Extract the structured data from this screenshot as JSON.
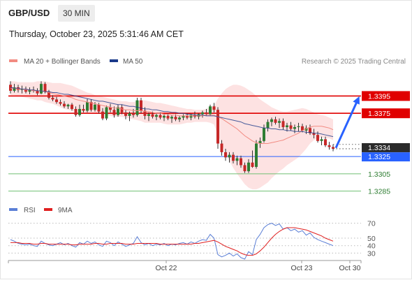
{
  "header": {
    "symbol": "GBP/USD",
    "timeframe": "30 MIN",
    "timestamp": "Thursday, October 23, 2025 5:31:46 AM CET"
  },
  "legend": {
    "ma20": {
      "label": "MA 20 + Bollinger Bands",
      "color": "#f28b82"
    },
    "ma50": {
      "label": "MA 50",
      "color": "#1a3a8a"
    },
    "credit": "Research © 2025 Trading Central"
  },
  "rsi_legend": {
    "rsi": {
      "label": "RSI",
      "color": "#5b7fd6"
    },
    "ma9": {
      "label": "9MA",
      "color": "#e02020"
    }
  },
  "colors": {
    "bull": "#2e7d32",
    "bear": "#c62828",
    "wick": "#333333",
    "band": "#fde2e2",
    "resistance": "#e00000",
    "support_line": "#2962ff",
    "target": "#6fbf73",
    "projection": "#2962ff"
  },
  "chart_data": [
    {
      "type": "candlestick",
      "title": "",
      "y_range": [
        1.3275,
        1.3418
      ],
      "x_ticks": [
        "Oct 22",
        "Oct 23",
        "Oct 30"
      ],
      "last_price": 1.3334,
      "levels": [
        {
          "value": 1.3395,
          "label": "1.3395",
          "kind": "resistance"
        },
        {
          "value": 1.3375,
          "label": "1.3375",
          "kind": "resistance"
        },
        {
          "value": 1.3325,
          "label": "1.3325",
          "kind": "pivot"
        },
        {
          "value": 1.3305,
          "label": "1.3305",
          "kind": "support"
        },
        {
          "value": 1.3285,
          "label": "1.3285",
          "kind": "support"
        }
      ],
      "projection": {
        "from": 1.3335,
        "to": 1.3395
      },
      "candles": [
        [
          1.3408,
          1.3412,
          1.3398,
          1.3401
        ],
        [
          1.3401,
          1.3409,
          1.3399,
          1.3405
        ],
        [
          1.3405,
          1.3408,
          1.3399,
          1.3402
        ],
        [
          1.3402,
          1.3407,
          1.3398,
          1.3403
        ],
        [
          1.3403,
          1.3406,
          1.3398,
          1.34
        ],
        [
          1.34,
          1.3405,
          1.3397,
          1.3402
        ],
        [
          1.3402,
          1.3406,
          1.3399,
          1.3401
        ],
        [
          1.3401,
          1.3404,
          1.3396,
          1.3398
        ],
        [
          1.3398,
          1.3412,
          1.3397,
          1.3409
        ],
        [
          1.3409,
          1.3411,
          1.3398,
          1.34
        ],
        [
          1.34,
          1.3402,
          1.3391,
          1.3393
        ],
        [
          1.3393,
          1.3396,
          1.3389,
          1.3391
        ],
        [
          1.3391,
          1.3394,
          1.3386,
          1.3388
        ],
        [
          1.3388,
          1.3391,
          1.3384,
          1.3386
        ],
        [
          1.3386,
          1.3389,
          1.3381,
          1.3383
        ],
        [
          1.3383,
          1.3386,
          1.338,
          1.3385
        ],
        [
          1.3385,
          1.3387,
          1.3378,
          1.338
        ],
        [
          1.338,
          1.3383,
          1.3371,
          1.3373
        ],
        [
          1.3373,
          1.3385,
          1.3371,
          1.338
        ],
        [
          1.338,
          1.3385,
          1.3376,
          1.3378
        ],
        [
          1.3378,
          1.3392,
          1.3376,
          1.3388
        ],
        [
          1.3388,
          1.3391,
          1.3377,
          1.3379
        ],
        [
          1.3379,
          1.3388,
          1.3377,
          1.3385
        ],
        [
          1.3385,
          1.3387,
          1.3375,
          1.3377
        ],
        [
          1.3377,
          1.3381,
          1.3367,
          1.3369
        ],
        [
          1.3369,
          1.3384,
          1.3367,
          1.3382
        ],
        [
          1.3382,
          1.3386,
          1.3376,
          1.3379
        ],
        [
          1.3379,
          1.3383,
          1.337,
          1.3373
        ],
        [
          1.3373,
          1.3385,
          1.3371,
          1.3382
        ],
        [
          1.3382,
          1.3385,
          1.3374,
          1.3376
        ],
        [
          1.3376,
          1.3379,
          1.3368,
          1.3372
        ],
        [
          1.3372,
          1.3377,
          1.3366,
          1.3375
        ],
        [
          1.3375,
          1.338,
          1.337,
          1.3373
        ],
        [
          1.3373,
          1.3393,
          1.3371,
          1.339
        ],
        [
          1.339,
          1.3393,
          1.3375,
          1.3378
        ],
        [
          1.3378,
          1.3382,
          1.3368,
          1.3372
        ],
        [
          1.3372,
          1.3376,
          1.3366,
          1.3374
        ],
        [
          1.3374,
          1.3377,
          1.3369,
          1.3371
        ],
        [
          1.3371,
          1.3375,
          1.3367,
          1.3373
        ],
        [
          1.3373,
          1.3376,
          1.3368,
          1.337
        ],
        [
          1.337,
          1.3374,
          1.3366,
          1.3372
        ],
        [
          1.3372,
          1.3375,
          1.3367,
          1.3369
        ],
        [
          1.3369,
          1.3373,
          1.3364,
          1.3371
        ],
        [
          1.3371,
          1.3374,
          1.3366,
          1.3368
        ],
        [
          1.3368,
          1.3372,
          1.3365,
          1.337
        ],
        [
          1.337,
          1.3374,
          1.3367,
          1.3372
        ],
        [
          1.3372,
          1.3375,
          1.3368,
          1.337
        ],
        [
          1.337,
          1.3374,
          1.3367,
          1.3373
        ],
        [
          1.3373,
          1.3377,
          1.3369,
          1.3371
        ],
        [
          1.3371,
          1.3375,
          1.3368,
          1.3374
        ],
        [
          1.3374,
          1.3378,
          1.337,
          1.3376
        ],
        [
          1.3376,
          1.338,
          1.3372,
          1.3374
        ],
        [
          1.3374,
          1.3385,
          1.3372,
          1.3383
        ],
        [
          1.3383,
          1.3387,
          1.3376,
          1.3379
        ],
        [
          1.3379,
          1.3382,
          1.3334,
          1.334
        ],
        [
          1.334,
          1.3344,
          1.3326,
          1.333
        ],
        [
          1.333,
          1.3334,
          1.332,
          1.3324
        ],
        [
          1.3324,
          1.333,
          1.3318,
          1.3327
        ],
        [
          1.3327,
          1.333,
          1.3317,
          1.332
        ],
        [
          1.332,
          1.3326,
          1.3315,
          1.3323
        ],
        [
          1.3323,
          1.3326,
          1.3312,
          1.3315
        ],
        [
          1.3315,
          1.3318,
          1.3306,
          1.3308
        ],
        [
          1.3308,
          1.3322,
          1.3306,
          1.3318
        ],
        [
          1.3318,
          1.3332,
          1.3312,
          1.3313
        ],
        [
          1.3313,
          1.3344,
          1.3311,
          1.334
        ],
        [
          1.334,
          1.3347,
          1.3335,
          1.3343
        ],
        [
          1.3343,
          1.3362,
          1.3341,
          1.3358
        ],
        [
          1.3358,
          1.3368,
          1.3354,
          1.3365
        ],
        [
          1.3365,
          1.337,
          1.336,
          1.3368
        ],
        [
          1.3368,
          1.3371,
          1.3362,
          1.3364
        ],
        [
          1.3364,
          1.3369,
          1.3358,
          1.3366
        ],
        [
          1.3366,
          1.3369,
          1.3356,
          1.3359
        ],
        [
          1.3359,
          1.3364,
          1.3354,
          1.3361
        ],
        [
          1.3361,
          1.3365,
          1.3355,
          1.3357
        ],
        [
          1.3357,
          1.3362,
          1.3352,
          1.3359
        ],
        [
          1.3359,
          1.3364,
          1.3354,
          1.336
        ],
        [
          1.336,
          1.3363,
          1.3353,
          1.3355
        ],
        [
          1.3355,
          1.3361,
          1.3351,
          1.3358
        ],
        [
          1.3358,
          1.3362,
          1.335,
          1.3352
        ],
        [
          1.3352,
          1.3357,
          1.3346,
          1.335
        ],
        [
          1.335,
          1.3354,
          1.3341,
          1.3343
        ],
        [
          1.3343,
          1.3348,
          1.3338,
          1.3345
        ],
        [
          1.3345,
          1.3348,
          1.3336,
          1.3338
        ],
        [
          1.3338,
          1.3342,
          1.3333,
          1.3336
        ],
        [
          1.3336,
          1.3339,
          1.3331,
          1.3334
        ]
      ],
      "ma20": [
        1.3404,
        1.3404,
        1.3403,
        1.3403,
        1.3402,
        1.3402,
        1.3401,
        1.3401,
        1.3401,
        1.34,
        1.3399,
        1.3398,
        1.3397,
        1.3396,
        1.3395,
        1.3394,
        1.3393,
        1.3391,
        1.339,
        1.3389,
        1.3388,
        1.3387,
        1.3386,
        1.3385,
        1.3384,
        1.3383,
        1.3382,
        1.3381,
        1.3381,
        1.338,
        1.3379,
        1.3379,
        1.3378,
        1.3378,
        1.3378,
        1.3377,
        1.3377,
        1.3376,
        1.3375,
        1.3375,
        1.3374,
        1.3374,
        1.3373,
        1.3373,
        1.3372,
        1.3372,
        1.3372,
        1.3372,
        1.3372,
        1.3372,
        1.3372,
        1.3373,
        1.3373,
        1.3373,
        1.3371,
        1.3369,
        1.3366,
        1.3363,
        1.336,
        1.3357,
        1.3353,
        1.3349,
        1.3346,
        1.3343,
        1.3341,
        1.334,
        1.334,
        1.334,
        1.3341,
        1.3342,
        1.3343,
        1.3344,
        1.3346,
        1.3348,
        1.335,
        1.3352,
        1.3355,
        1.3357,
        1.3359,
        1.336,
        1.336,
        1.336,
        1.3359,
        1.3358,
        1.3356
      ],
      "bb_upper": [
        1.3412,
        1.3412,
        1.3411,
        1.3411,
        1.3411,
        1.3411,
        1.3411,
        1.3412,
        1.3412,
        1.3412,
        1.3411,
        1.341,
        1.341,
        1.341,
        1.3409,
        1.3408,
        1.3407,
        1.3405,
        1.3403,
        1.3401,
        1.3399,
        1.3398,
        1.3396,
        1.3395,
        1.3394,
        1.3393,
        1.3392,
        1.3391,
        1.339,
        1.3389,
        1.3389,
        1.3388,
        1.3388,
        1.3389,
        1.339,
        1.339,
        1.3389,
        1.3388,
        1.3387,
        1.3387,
        1.3386,
        1.3385,
        1.3384,
        1.3383,
        1.3382,
        1.3381,
        1.338,
        1.338,
        1.3379,
        1.3379,
        1.3379,
        1.338,
        1.3382,
        1.3384,
        1.3392,
        1.3398,
        1.3403,
        1.3406,
        1.3408,
        1.3408,
        1.3407,
        1.3405,
        1.3402,
        1.3399,
        1.3395,
        1.3391,
        1.3388,
        1.3385,
        1.3382,
        1.338,
        1.3378,
        1.3377,
        1.3377,
        1.3378,
        1.3379,
        1.338,
        1.3381,
        1.338,
        1.3378,
        1.3376,
        1.3374,
        1.3373,
        1.3372,
        1.337,
        1.3368
      ],
      "bb_lower": [
        1.3396,
        1.3396,
        1.3395,
        1.3394,
        1.3393,
        1.3392,
        1.3391,
        1.339,
        1.339,
        1.3388,
        1.3387,
        1.3386,
        1.3384,
        1.3382,
        1.338,
        1.3379,
        1.3378,
        1.3377,
        1.3376,
        1.3376,
        1.3376,
        1.3376,
        1.3376,
        1.3375,
        1.3374,
        1.3373,
        1.3372,
        1.3371,
        1.3371,
        1.3371,
        1.337,
        1.3369,
        1.3368,
        1.3367,
        1.3366,
        1.3364,
        1.3364,
        1.3364,
        1.3364,
        1.3364,
        1.3363,
        1.3362,
        1.3362,
        1.3362,
        1.3362,
        1.3363,
        1.3364,
        1.3364,
        1.3365,
        1.3365,
        1.3365,
        1.3365,
        1.3364,
        1.3362,
        1.335,
        1.334,
        1.3329,
        1.332,
        1.3312,
        1.3305,
        1.3299,
        1.3293,
        1.3289,
        1.3287,
        1.3287,
        1.3289,
        1.3292,
        1.3295,
        1.33,
        1.3304,
        1.3308,
        1.3311,
        1.3315,
        1.3318,
        1.3321,
        1.3324,
        1.3329,
        1.3334,
        1.334,
        1.3344,
        1.3346,
        1.3347,
        1.3346,
        1.3346,
        1.3344
      ],
      "ma50": [
        1.3405,
        1.3404,
        1.3404,
        1.3403,
        1.3403,
        1.3402,
        1.3402,
        1.3401,
        1.3401,
        1.34,
        1.34,
        1.3399,
        1.3399,
        1.3398,
        1.3397,
        1.3397,
        1.3396,
        1.3395,
        1.3394,
        1.3393,
        1.3392,
        1.3391,
        1.339,
        1.3389,
        1.3389,
        1.3388,
        1.3387,
        1.3386,
        1.3385,
        1.3385,
        1.3384,
        1.3383,
        1.3383,
        1.3382,
        1.3381,
        1.338,
        1.338,
        1.3379,
        1.3379,
        1.3378,
        1.3377,
        1.3377,
        1.3376,
        1.3376,
        1.3375,
        1.3375,
        1.3374,
        1.3374,
        1.3373,
        1.3373,
        1.3373,
        1.3372,
        1.3372,
        1.3372,
        1.3371,
        1.337,
        1.3369,
        1.3368,
        1.3367,
        1.3366,
        1.3365,
        1.3363,
        1.3362,
        1.3361,
        1.336,
        1.3359,
        1.3358,
        1.3358,
        1.3357,
        1.3357,
        1.3356,
        1.3356,
        1.3355,
        1.3355,
        1.3354,
        1.3354,
        1.3354,
        1.3353,
        1.3353,
        1.3352,
        1.3352,
        1.3351,
        1.335,
        1.3349,
        1.3348
      ]
    },
    {
      "type": "line",
      "title": "",
      "y_range": [
        22,
        78
      ],
      "y_ticks": [
        70,
        50,
        40,
        30
      ],
      "series": [
        {
          "name": "RSI",
          "values": [
            48,
            46,
            43,
            42,
            41,
            42,
            40,
            39,
            46,
            43,
            41,
            40,
            42,
            44,
            41,
            43,
            40,
            38,
            44,
            42,
            46,
            43,
            45,
            41,
            39,
            46,
            44,
            40,
            45,
            42,
            39,
            41,
            43,
            52,
            44,
            41,
            43,
            40,
            42,
            41,
            43,
            40,
            42,
            41,
            43,
            44,
            42,
            45,
            43,
            46,
            48,
            47,
            55,
            50,
            28,
            25,
            27,
            30,
            26,
            29,
            24,
            22,
            32,
            28,
            48,
            55,
            64,
            68,
            70,
            67,
            69,
            62,
            64,
            60,
            62,
            58,
            60,
            54,
            57,
            51,
            48,
            46,
            44,
            42,
            40
          ]
        },
        {
          "name": "9MA",
          "values": [
            44,
            44,
            44,
            43,
            43,
            43,
            42,
            42,
            43,
            43,
            42,
            42,
            42,
            42,
            42,
            42,
            41,
            41,
            42,
            42,
            42,
            42,
            43,
            43,
            42,
            42,
            43,
            43,
            43,
            43,
            42,
            42,
            42,
            43,
            43,
            43,
            43,
            43,
            43,
            42,
            42,
            42,
            42,
            42,
            42,
            42,
            42,
            42,
            43,
            43,
            44,
            45,
            46,
            47,
            45,
            42,
            39,
            37,
            35,
            33,
            30,
            28,
            27,
            27,
            29,
            33,
            38,
            44,
            50,
            55,
            59,
            62,
            64,
            64,
            64,
            63,
            62,
            61,
            59,
            57,
            55,
            53,
            50,
            48,
            46
          ]
        }
      ]
    }
  ]
}
